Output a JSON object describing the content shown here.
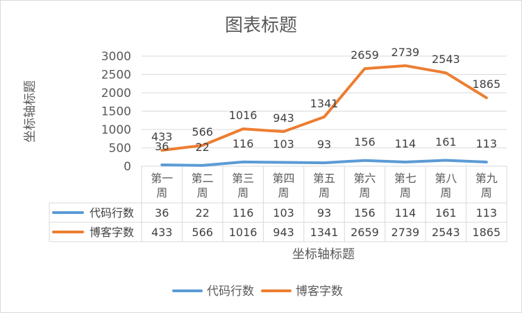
{
  "chart_data": {
    "type": "line",
    "title": "图表标题",
    "xlabel": "坐标轴标题",
    "ylabel": "坐标轴标题",
    "ylim": [
      0,
      3000
    ],
    "yticks": [
      0,
      500,
      1000,
      1500,
      2000,
      2500,
      3000
    ],
    "categories": [
      [
        "第一",
        "周"
      ],
      [
        "第二",
        "周"
      ],
      [
        "第三",
        "周"
      ],
      [
        "第四",
        "周"
      ],
      [
        "第五",
        "周"
      ],
      [
        "第六",
        "周"
      ],
      [
        "第七",
        "周"
      ],
      [
        "第八",
        "周"
      ],
      [
        "第九",
        "周"
      ]
    ],
    "series": [
      {
        "name": "代码行数",
        "color": "#5b9bd5",
        "values": [
          36,
          22,
          116,
          103,
          93,
          156,
          114,
          161,
          113
        ]
      },
      {
        "name": "博客字数",
        "color": "#ed7d31",
        "values": [
          433,
          566,
          1016,
          943,
          1341,
          2659,
          2739,
          2543,
          1865
        ]
      }
    ],
    "grid": true,
    "data_table": true,
    "legend": "bottom"
  }
}
